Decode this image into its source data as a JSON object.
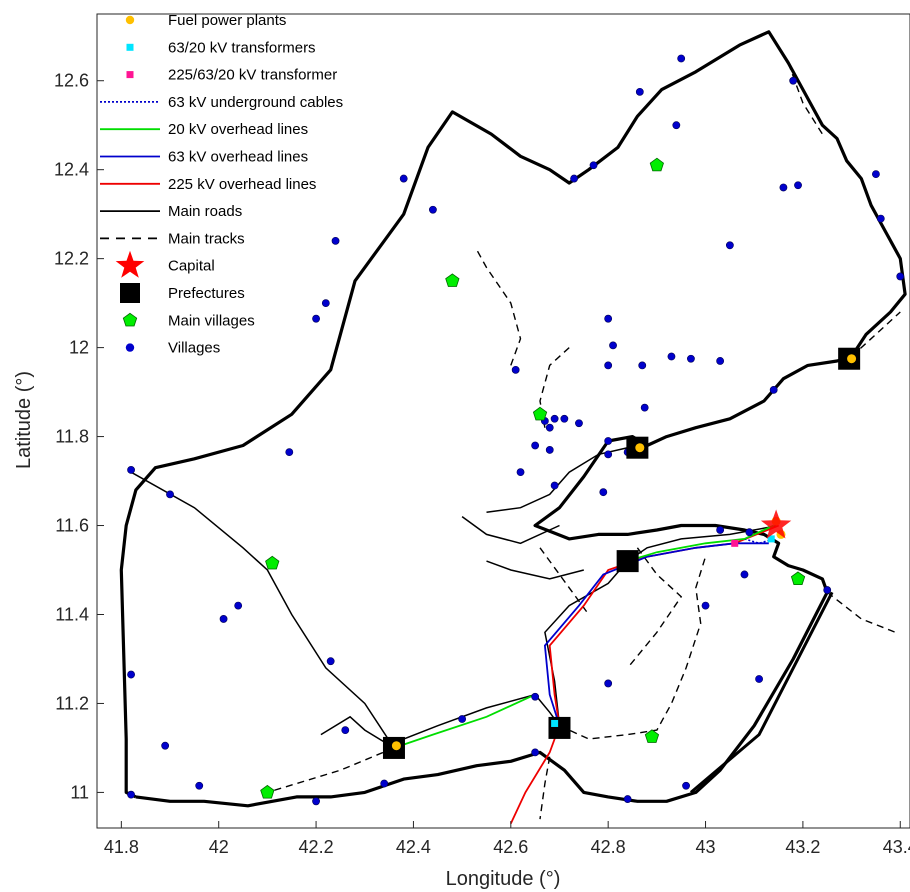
{
  "axes": {
    "xlabel": "Longitude (°)",
    "ylabel": "Latitude (°)",
    "xlim": [
      41.75,
      43.42
    ],
    "ylim": [
      10.92,
      12.75
    ],
    "xticks": [
      "41.8",
      "42",
      "42.2",
      "42.4",
      "42.6",
      "42.8",
      "43",
      "43.2",
      "43.4"
    ],
    "yticks": [
      "11",
      "11.2",
      "11.4",
      "11.6",
      "11.8",
      "12",
      "12.2",
      "12.4",
      "12.6"
    ]
  },
  "legend": {
    "placement": "top-left",
    "items": [
      {
        "label": "Fuel power plants",
        "symbol": "circle",
        "color": "#FFC000"
      },
      {
        "label": "63/20 kV transformers",
        "symbol": "square",
        "color": "#00E5FF"
      },
      {
        "label": "225/63/20 kV transformer",
        "symbol": "square",
        "color": "#FF1493"
      },
      {
        "label": "63 kV underground cables",
        "symbol": "dotted-line",
        "color": "#0000CC"
      },
      {
        "label": "20 kV overhead lines",
        "symbol": "line",
        "color": "#00DD00"
      },
      {
        "label": "63 kV overhead lines",
        "symbol": "line",
        "color": "#0000CC"
      },
      {
        "label": "225 kV overhead lines",
        "symbol": "line",
        "color": "#EE0000"
      },
      {
        "label": "Main roads",
        "symbol": "line",
        "color": "#000000"
      },
      {
        "label": "Main tracks",
        "symbol": "dashed-line",
        "color": "#000000"
      },
      {
        "label": "Capital",
        "symbol": "star",
        "color": "#FF0000"
      },
      {
        "label": "Prefectures",
        "symbol": "big-square",
        "color": "#000000"
      },
      {
        "label": "Main villages",
        "symbol": "pentagon",
        "color": "#00EE00"
      },
      {
        "label": "Villages",
        "symbol": "circle",
        "color": "#0000CC"
      }
    ]
  },
  "chart_data": {
    "type": "scatter",
    "xlabel": "Longitude (°)",
    "ylabel": "Latitude (°)",
    "xlim": [
      41.75,
      43.42
    ],
    "ylim": [
      10.92,
      12.75
    ],
    "grid": false,
    "capital": [
      [
        43.145,
        11.6
      ]
    ],
    "prefectures": [
      [
        42.36,
        11.1
      ],
      [
        42.7,
        11.145
      ],
      [
        42.84,
        11.52
      ],
      [
        42.86,
        11.775
      ],
      [
        43.295,
        11.975
      ]
    ],
    "fuel_power_plants": [
      [
        42.365,
        11.105
      ],
      [
        42.865,
        11.775
      ],
      [
        43.3,
        11.975
      ],
      [
        43.145,
        11.61
      ],
      [
        43.155,
        11.58
      ]
    ],
    "transformers_63_20kV": [
      [
        42.69,
        11.155
      ],
      [
        43.135,
        11.57
      ]
    ],
    "transformer_225_63_20kV": [
      [
        43.06,
        11.56
      ]
    ],
    "main_villages": [
      [
        42.9,
        12.41
      ],
      [
        42.48,
        12.15
      ],
      [
        42.66,
        11.85
      ],
      [
        42.11,
        11.515
      ],
      [
        43.19,
        11.48
      ],
      [
        42.89,
        11.125
      ],
      [
        42.1,
        11.0
      ]
    ],
    "villages": [
      [
        42.95,
        12.65
      ],
      [
        43.18,
        12.6
      ],
      [
        42.865,
        12.575
      ],
      [
        42.94,
        12.5
      ],
      [
        42.73,
        12.38
      ],
      [
        42.77,
        12.41
      ],
      [
        42.38,
        12.38
      ],
      [
        42.44,
        12.31
      ],
      [
        43.16,
        12.36
      ],
      [
        43.19,
        12.365
      ],
      [
        43.35,
        12.39
      ],
      [
        43.36,
        12.29
      ],
      [
        43.05,
        12.23
      ],
      [
        42.24,
        12.24
      ],
      [
        43.4,
        12.16
      ],
      [
        42.22,
        12.1
      ],
      [
        42.2,
        12.065
      ],
      [
        42.8,
        12.065
      ],
      [
        42.81,
        12.005
      ],
      [
        42.93,
        11.98
      ],
      [
        42.97,
        11.975
      ],
      [
        43.03,
        11.97
      ],
      [
        42.8,
        11.96
      ],
      [
        42.87,
        11.96
      ],
      [
        42.61,
        11.95
      ],
      [
        42.875,
        11.865
      ],
      [
        42.67,
        11.835
      ],
      [
        42.69,
        11.84
      ],
      [
        42.71,
        11.84
      ],
      [
        42.68,
        11.82
      ],
      [
        42.74,
        11.83
      ],
      [
        42.65,
        11.78
      ],
      [
        42.68,
        11.77
      ],
      [
        42.8,
        11.79
      ],
      [
        42.84,
        11.765
      ],
      [
        42.8,
        11.76
      ],
      [
        42.69,
        11.69
      ],
      [
        42.62,
        11.72
      ],
      [
        42.79,
        11.675
      ],
      [
        42.145,
        11.765
      ],
      [
        41.82,
        11.725
      ],
      [
        41.9,
        11.67
      ],
      [
        43.14,
        11.905
      ],
      [
        43.03,
        11.59
      ],
      [
        43.09,
        11.585
      ],
      [
        42.85,
        11.505
      ],
      [
        43.08,
        11.49
      ],
      [
        43.25,
        11.455
      ],
      [
        43.0,
        11.42
      ],
      [
        42.04,
        11.42
      ],
      [
        42.01,
        11.39
      ],
      [
        42.23,
        11.295
      ],
      [
        43.11,
        11.255
      ],
      [
        42.8,
        11.245
      ],
      [
        41.82,
        11.265
      ],
      [
        42.65,
        11.215
      ],
      [
        42.26,
        11.14
      ],
      [
        42.5,
        11.165
      ],
      [
        41.89,
        11.105
      ],
      [
        42.96,
        11.015
      ],
      [
        42.65,
        11.09
      ],
      [
        42.34,
        11.02
      ],
      [
        41.96,
        11.015
      ],
      [
        41.82,
        10.995
      ],
      [
        42.84,
        10.985
      ],
      [
        42.2,
        10.98
      ]
    ],
    "border": [
      [
        41.83,
        10.99
      ],
      [
        41.81,
        11.0
      ],
      [
        41.81,
        11.12
      ],
      [
        41.8,
        11.5
      ],
      [
        41.81,
        11.6
      ],
      [
        41.83,
        11.68
      ],
      [
        41.87,
        11.73
      ],
      [
        41.95,
        11.75
      ],
      [
        42.05,
        11.78
      ],
      [
        42.15,
        11.85
      ],
      [
        42.23,
        11.95
      ],
      [
        42.28,
        12.15
      ],
      [
        42.38,
        12.3
      ],
      [
        42.43,
        12.45
      ],
      [
        42.48,
        12.53
      ],
      [
        42.56,
        12.48
      ],
      [
        42.62,
        12.43
      ],
      [
        42.68,
        12.4
      ],
      [
        42.72,
        12.37
      ],
      [
        42.76,
        12.4
      ],
      [
        42.82,
        12.45
      ],
      [
        42.86,
        12.52
      ],
      [
        42.91,
        12.58
      ],
      [
        42.98,
        12.62
      ],
      [
        43.07,
        12.68
      ],
      [
        43.13,
        12.71
      ],
      [
        43.17,
        12.64
      ],
      [
        43.21,
        12.56
      ],
      [
        43.24,
        12.5
      ],
      [
        43.27,
        12.47
      ],
      [
        43.29,
        12.42
      ],
      [
        43.32,
        12.38
      ],
      [
        43.34,
        12.32
      ],
      [
        43.37,
        12.26
      ],
      [
        43.4,
        12.2
      ],
      [
        43.41,
        12.12
      ],
      [
        43.38,
        12.08
      ],
      [
        43.33,
        12.03
      ],
      [
        43.3,
        11.98
      ],
      [
        43.27,
        11.97
      ],
      [
        43.21,
        11.96
      ],
      [
        43.16,
        11.93
      ],
      [
        43.12,
        11.88
      ],
      [
        43.05,
        11.84
      ],
      [
        42.98,
        11.82
      ],
      [
        42.92,
        11.8
      ],
      [
        42.88,
        11.78
      ],
      [
        42.85,
        11.8
      ],
      [
        42.8,
        11.79
      ],
      [
        42.75,
        11.71
      ],
      [
        42.7,
        11.64
      ],
      [
        42.65,
        11.6
      ],
      [
        42.72,
        11.57
      ],
      [
        42.78,
        11.58
      ],
      [
        42.84,
        11.58
      ],
      [
        42.9,
        11.59
      ],
      [
        42.95,
        11.6
      ],
      [
        43.02,
        11.6
      ],
      [
        43.08,
        11.59
      ],
      [
        43.12,
        11.58
      ],
      [
        43.15,
        11.56
      ],
      [
        43.14,
        11.53
      ],
      [
        43.17,
        11.51
      ],
      [
        43.2,
        11.5
      ],
      [
        43.24,
        11.48
      ],
      [
        43.25,
        11.45
      ],
      [
        43.18,
        11.3
      ],
      [
        43.1,
        11.15
      ],
      [
        43.03,
        11.05
      ],
      [
        42.98,
        11.0
      ],
      [
        42.92,
        10.98
      ],
      [
        42.86,
        10.98
      ],
      [
        42.8,
        10.99
      ],
      [
        42.75,
        11.0
      ],
      [
        42.71,
        11.05
      ],
      [
        42.66,
        11.09
      ],
      [
        42.6,
        11.07
      ],
      [
        42.53,
        11.06
      ],
      [
        42.45,
        11.04
      ],
      [
        42.38,
        11.03
      ],
      [
        42.3,
        11.0
      ],
      [
        42.23,
        10.99
      ],
      [
        42.16,
        10.99
      ],
      [
        42.06,
        10.97
      ],
      [
        41.97,
        10.98
      ],
      [
        41.9,
        10.98
      ],
      [
        41.83,
        10.99
      ]
    ],
    "main_roads": [
      [
        [
          41.82,
          11.72
        ],
        [
          41.95,
          11.64
        ],
        [
          42.05,
          11.55
        ],
        [
          42.1,
          11.5
        ],
        [
          42.15,
          11.4
        ],
        [
          42.22,
          11.28
        ],
        [
          42.3,
          11.2
        ],
        [
          42.36,
          11.1
        ]
      ],
      [
        [
          42.36,
          11.1
        ],
        [
          42.38,
          11.12
        ],
        [
          42.45,
          11.15
        ],
        [
          42.55,
          11.19
        ],
        [
          42.65,
          11.22
        ],
        [
          42.68,
          11.18
        ],
        [
          42.7,
          11.15
        ]
      ],
      [
        [
          42.7,
          11.15
        ],
        [
          42.69,
          11.25
        ],
        [
          42.67,
          11.36
        ],
        [
          42.72,
          11.42
        ],
        [
          42.8,
          11.47
        ],
        [
          42.84,
          11.52
        ]
      ],
      [
        [
          42.84,
          11.52
        ],
        [
          42.88,
          11.55
        ],
        [
          42.95,
          11.57
        ],
        [
          43.05,
          11.58
        ],
        [
          43.15,
          11.6
        ]
      ],
      [
        [
          42.86,
          11.78
        ],
        [
          42.78,
          11.76
        ],
        [
          42.72,
          11.72
        ],
        [
          42.68,
          11.67
        ],
        [
          42.62,
          11.64
        ],
        [
          42.55,
          11.63
        ]
      ],
      [
        [
          42.7,
          11.6
        ],
        [
          42.62,
          11.56
        ],
        [
          42.55,
          11.58
        ],
        [
          42.5,
          11.62
        ]
      ],
      [
        [
          42.75,
          11.5
        ],
        [
          42.68,
          11.48
        ],
        [
          42.6,
          11.5
        ],
        [
          42.55,
          11.52
        ]
      ],
      [
        [
          43.26,
          11.45
        ],
        [
          43.11,
          11.13
        ],
        [
          42.97,
          11.0
        ]
      ],
      [
        [
          42.36,
          11.1
        ],
        [
          42.3,
          11.14
        ],
        [
          42.27,
          11.17
        ],
        [
          42.21,
          11.13
        ]
      ]
    ],
    "main_tracks": [
      [
        [
          42.6,
          11.96
        ],
        [
          42.62,
          12.02
        ],
        [
          42.6,
          12.1
        ],
        [
          42.55,
          12.18
        ],
        [
          42.53,
          12.22
        ]
      ],
      [
        [
          42.72,
          12.0
        ],
        [
          42.68,
          11.96
        ],
        [
          42.66,
          11.88
        ],
        [
          42.67,
          11.82
        ]
      ],
      [
        [
          42.66,
          11.55
        ],
        [
          42.72,
          11.46
        ],
        [
          42.76,
          11.4
        ]
      ],
      [
        [
          42.36,
          11.1
        ],
        [
          42.25,
          11.05
        ],
        [
          42.1,
          11.0
        ]
      ],
      [
        [
          42.7,
          11.15
        ],
        [
          42.76,
          11.12
        ],
        [
          42.84,
          11.13
        ],
        [
          42.9,
          11.14
        ],
        [
          42.93,
          11.2
        ],
        [
          42.96,
          11.28
        ],
        [
          42.99,
          11.38
        ],
        [
          42.98,
          11.46
        ],
        [
          43.0,
          11.53
        ]
      ],
      [
        [
          42.86,
          11.55
        ],
        [
          42.9,
          11.49
        ],
        [
          42.95,
          11.44
        ],
        [
          42.9,
          11.36
        ],
        [
          42.84,
          11.28
        ]
      ],
      [
        [
          43.25,
          11.45
        ],
        [
          43.32,
          11.39
        ],
        [
          43.39,
          11.36
        ]
      ],
      [
        [
          43.3,
          11.98
        ],
        [
          43.34,
          12.02
        ],
        [
          43.4,
          12.08
        ]
      ],
      [
        [
          43.17,
          12.64
        ],
        [
          43.2,
          12.55
        ],
        [
          43.24,
          12.48
        ]
      ],
      [
        [
          42.68,
          11.08
        ],
        [
          42.67,
          11.02
        ],
        [
          42.66,
          10.94
        ]
      ]
    ],
    "lines_225kV": [
      [
        [
          42.6,
          10.93
        ],
        [
          42.63,
          11.0
        ],
        [
          42.68,
          11.09
        ],
        [
          42.7,
          11.15
        ],
        [
          42.69,
          11.22
        ],
        [
          42.68,
          11.33
        ],
        [
          42.75,
          11.42
        ],
        [
          42.8,
          11.5
        ],
        [
          42.88,
          11.53
        ],
        [
          42.98,
          11.55
        ],
        [
          43.06,
          11.56
        ],
        [
          43.15,
          11.6
        ]
      ]
    ],
    "lines_63kV": [
      [
        [
          42.7,
          11.15
        ],
        [
          42.68,
          11.22
        ],
        [
          42.67,
          11.33
        ],
        [
          42.74,
          11.42
        ],
        [
          42.79,
          11.49
        ],
        [
          42.88,
          11.53
        ],
        [
          42.98,
          11.55
        ],
        [
          43.06,
          11.56
        ],
        [
          43.13,
          11.56
        ]
      ]
    ],
    "underground_63kV": [
      [
        [
          43.08,
          11.57
        ],
        [
          43.11,
          11.56
        ],
        [
          43.14,
          11.57
        ]
      ]
    ],
    "lines_20kV": [
      [
        [
          42.36,
          11.1
        ],
        [
          42.44,
          11.13
        ],
        [
          42.55,
          11.17
        ],
        [
          42.65,
          11.22
        ]
      ],
      [
        [
          42.84,
          11.52
        ],
        [
          42.9,
          11.54
        ],
        [
          43.0,
          11.56
        ],
        [
          43.08,
          11.57
        ],
        [
          43.14,
          11.6
        ]
      ]
    ]
  }
}
